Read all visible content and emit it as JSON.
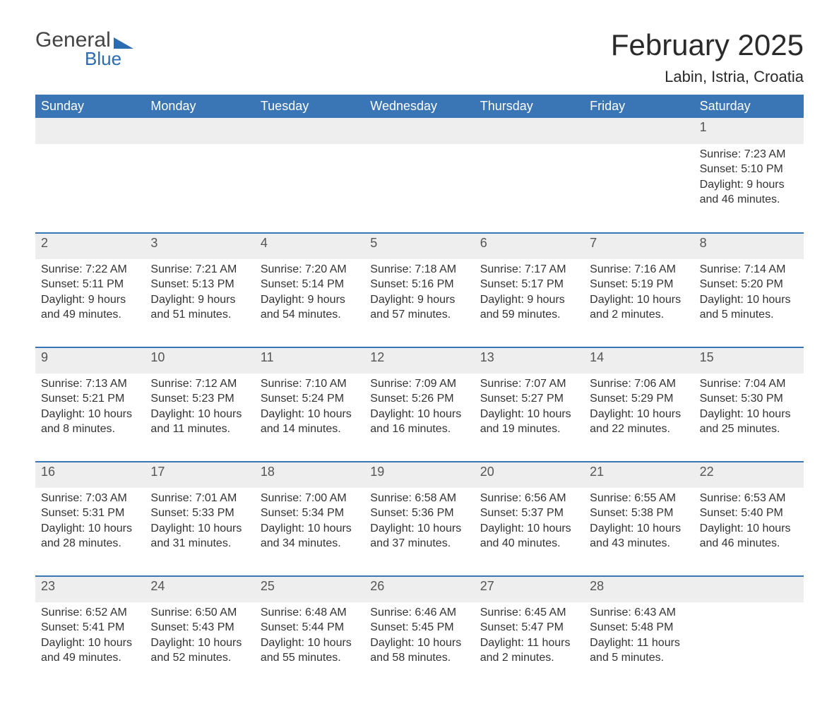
{
  "brand": {
    "word1": "General",
    "word2": "Blue",
    "color": "#2b6bb0"
  },
  "title": "February 2025",
  "location": "Labin, Istria, Croatia",
  "colors": {
    "header_bg": "#3a75b6",
    "header_text": "#ffffff",
    "row_divider": "#3a75b6",
    "daynum_bg": "#eeeeee",
    "text": "#333333",
    "background": "#ffffff"
  },
  "day_names": [
    "Sunday",
    "Monday",
    "Tuesday",
    "Wednesday",
    "Thursday",
    "Friday",
    "Saturday"
  ],
  "weeks": [
    [
      null,
      null,
      null,
      null,
      null,
      null,
      {
        "n": "1",
        "sunrise": "Sunrise: 7:23 AM",
        "sunset": "Sunset: 5:10 PM",
        "d1": "Daylight: 9 hours",
        "d2": "and 46 minutes."
      }
    ],
    [
      {
        "n": "2",
        "sunrise": "Sunrise: 7:22 AM",
        "sunset": "Sunset: 5:11 PM",
        "d1": "Daylight: 9 hours",
        "d2": "and 49 minutes."
      },
      {
        "n": "3",
        "sunrise": "Sunrise: 7:21 AM",
        "sunset": "Sunset: 5:13 PM",
        "d1": "Daylight: 9 hours",
        "d2": "and 51 minutes."
      },
      {
        "n": "4",
        "sunrise": "Sunrise: 7:20 AM",
        "sunset": "Sunset: 5:14 PM",
        "d1": "Daylight: 9 hours",
        "d2": "and 54 minutes."
      },
      {
        "n": "5",
        "sunrise": "Sunrise: 7:18 AM",
        "sunset": "Sunset: 5:16 PM",
        "d1": "Daylight: 9 hours",
        "d2": "and 57 minutes."
      },
      {
        "n": "6",
        "sunrise": "Sunrise: 7:17 AM",
        "sunset": "Sunset: 5:17 PM",
        "d1": "Daylight: 9 hours",
        "d2": "and 59 minutes."
      },
      {
        "n": "7",
        "sunrise": "Sunrise: 7:16 AM",
        "sunset": "Sunset: 5:19 PM",
        "d1": "Daylight: 10 hours",
        "d2": "and 2 minutes."
      },
      {
        "n": "8",
        "sunrise": "Sunrise: 7:14 AM",
        "sunset": "Sunset: 5:20 PM",
        "d1": "Daylight: 10 hours",
        "d2": "and 5 minutes."
      }
    ],
    [
      {
        "n": "9",
        "sunrise": "Sunrise: 7:13 AM",
        "sunset": "Sunset: 5:21 PM",
        "d1": "Daylight: 10 hours",
        "d2": "and 8 minutes."
      },
      {
        "n": "10",
        "sunrise": "Sunrise: 7:12 AM",
        "sunset": "Sunset: 5:23 PM",
        "d1": "Daylight: 10 hours",
        "d2": "and 11 minutes."
      },
      {
        "n": "11",
        "sunrise": "Sunrise: 7:10 AM",
        "sunset": "Sunset: 5:24 PM",
        "d1": "Daylight: 10 hours",
        "d2": "and 14 minutes."
      },
      {
        "n": "12",
        "sunrise": "Sunrise: 7:09 AM",
        "sunset": "Sunset: 5:26 PM",
        "d1": "Daylight: 10 hours",
        "d2": "and 16 minutes."
      },
      {
        "n": "13",
        "sunrise": "Sunrise: 7:07 AM",
        "sunset": "Sunset: 5:27 PM",
        "d1": "Daylight: 10 hours",
        "d2": "and 19 minutes."
      },
      {
        "n": "14",
        "sunrise": "Sunrise: 7:06 AM",
        "sunset": "Sunset: 5:29 PM",
        "d1": "Daylight: 10 hours",
        "d2": "and 22 minutes."
      },
      {
        "n": "15",
        "sunrise": "Sunrise: 7:04 AM",
        "sunset": "Sunset: 5:30 PM",
        "d1": "Daylight: 10 hours",
        "d2": "and 25 minutes."
      }
    ],
    [
      {
        "n": "16",
        "sunrise": "Sunrise: 7:03 AM",
        "sunset": "Sunset: 5:31 PM",
        "d1": "Daylight: 10 hours",
        "d2": "and 28 minutes."
      },
      {
        "n": "17",
        "sunrise": "Sunrise: 7:01 AM",
        "sunset": "Sunset: 5:33 PM",
        "d1": "Daylight: 10 hours",
        "d2": "and 31 minutes."
      },
      {
        "n": "18",
        "sunrise": "Sunrise: 7:00 AM",
        "sunset": "Sunset: 5:34 PM",
        "d1": "Daylight: 10 hours",
        "d2": "and 34 minutes."
      },
      {
        "n": "19",
        "sunrise": "Sunrise: 6:58 AM",
        "sunset": "Sunset: 5:36 PM",
        "d1": "Daylight: 10 hours",
        "d2": "and 37 minutes."
      },
      {
        "n": "20",
        "sunrise": "Sunrise: 6:56 AM",
        "sunset": "Sunset: 5:37 PM",
        "d1": "Daylight: 10 hours",
        "d2": "and 40 minutes."
      },
      {
        "n": "21",
        "sunrise": "Sunrise: 6:55 AM",
        "sunset": "Sunset: 5:38 PM",
        "d1": "Daylight: 10 hours",
        "d2": "and 43 minutes."
      },
      {
        "n": "22",
        "sunrise": "Sunrise: 6:53 AM",
        "sunset": "Sunset: 5:40 PM",
        "d1": "Daylight: 10 hours",
        "d2": "and 46 minutes."
      }
    ],
    [
      {
        "n": "23",
        "sunrise": "Sunrise: 6:52 AM",
        "sunset": "Sunset: 5:41 PM",
        "d1": "Daylight: 10 hours",
        "d2": "and 49 minutes."
      },
      {
        "n": "24",
        "sunrise": "Sunrise: 6:50 AM",
        "sunset": "Sunset: 5:43 PM",
        "d1": "Daylight: 10 hours",
        "d2": "and 52 minutes."
      },
      {
        "n": "25",
        "sunrise": "Sunrise: 6:48 AM",
        "sunset": "Sunset: 5:44 PM",
        "d1": "Daylight: 10 hours",
        "d2": "and 55 minutes."
      },
      {
        "n": "26",
        "sunrise": "Sunrise: 6:46 AM",
        "sunset": "Sunset: 5:45 PM",
        "d1": "Daylight: 10 hours",
        "d2": "and 58 minutes."
      },
      {
        "n": "27",
        "sunrise": "Sunrise: 6:45 AM",
        "sunset": "Sunset: 5:47 PM",
        "d1": "Daylight: 11 hours",
        "d2": "and 2 minutes."
      },
      {
        "n": "28",
        "sunrise": "Sunrise: 6:43 AM",
        "sunset": "Sunset: 5:48 PM",
        "d1": "Daylight: 11 hours",
        "d2": "and 5 minutes."
      },
      null
    ]
  ]
}
